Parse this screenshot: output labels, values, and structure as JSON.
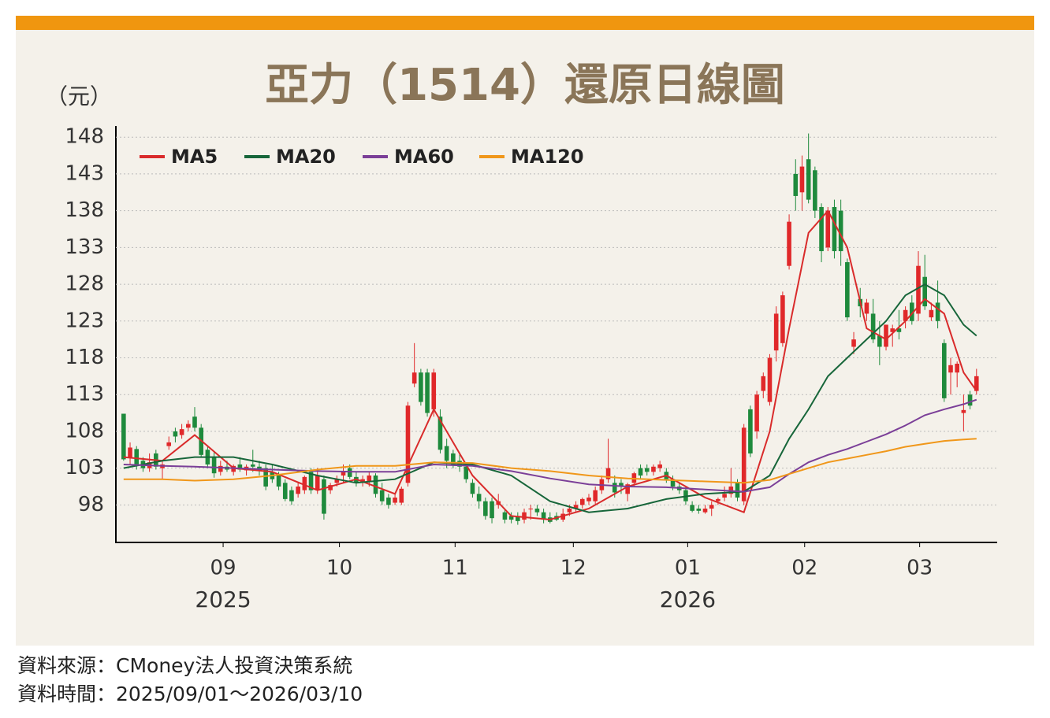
{
  "chart_data": {
    "type": "candlestick",
    "title": "亞力（1514）還原日線圖",
    "y_unit": "（元）",
    "ylim": [
      92.9,
      149.2
    ],
    "yticks": [
      148,
      143,
      138,
      133,
      128,
      123,
      118,
      113,
      108,
      103,
      98
    ],
    "xlim": [
      -1.2,
      135.2
    ],
    "xticks": [
      {
        "value": 15.4,
        "label": "09"
      },
      {
        "value": 33.4,
        "label": "10"
      },
      {
        "value": 51.3,
        "label": "11"
      },
      {
        "value": 69.6,
        "label": "12"
      },
      {
        "value": 87.3,
        "label": "01"
      },
      {
        "value": 105.4,
        "label": "02"
      },
      {
        "value": 123.2,
        "label": "03"
      }
    ],
    "year_labels": [
      {
        "value": 15.4,
        "label": "2025"
      },
      {
        "value": 87.3,
        "label": "2026"
      }
    ],
    "grid": true,
    "up_color": "#e0282a",
    "down_color": "#1e8a3c",
    "open": [
      110.4,
      104.4,
      105.6,
      104,
      103,
      105,
      103,
      106,
      108,
      107.5,
      108.5,
      110,
      108.5,
      105.5,
      104.5,
      102.5,
      103.2,
      102.5,
      103.5,
      102.7,
      103.5,
      103.2,
      103,
      102.5,
      102,
      101,
      100,
      99.5,
      100,
      102.5,
      100,
      101.5,
      100,
      101,
      102,
      103,
      101.8,
      101.2,
      101.2,
      102,
      100,
      99,
      98.3,
      98.3,
      101,
      114.5,
      116,
      116,
      111,
      110,
      106,
      105,
      104,
      103.2,
      101,
      99.5,
      98.5,
      98.5,
      98,
      97,
      96.5,
      96.5,
      96,
      97.5,
      97.5,
      97,
      96.3,
      96.5,
      96,
      97,
      97.5,
      98,
      98.5,
      98.5,
      100,
      101.5,
      101,
      101,
      99.5,
      101,
      103,
      103,
      102.5,
      103,
      102.5,
      101.5,
      100.5,
      100,
      98,
      97.5,
      97,
      97.5,
      98.5,
      99,
      99.5,
      101,
      98.5,
      111,
      108,
      113.5,
      112,
      119,
      120,
      130.5,
      143,
      140.5,
      145,
      143.5,
      138.5,
      133,
      138.5,
      138,
      131,
      119.5,
      126,
      124,
      124,
      121,
      119.5,
      121.5,
      122,
      123,
      125.5,
      124,
      129,
      123.5,
      125.5,
      120,
      116,
      116,
      110.5,
      113,
      113.5
    ],
    "high": [
      110.4,
      106.5,
      106,
      104.5,
      105,
      105.5,
      104,
      107.3,
      108.5,
      109,
      109.5,
      111.3,
      109,
      106,
      105.2,
      104,
      104,
      103.5,
      104.5,
      103.5,
      105.5,
      104,
      103.5,
      103.5,
      102.5,
      101.5,
      100.5,
      101,
      102,
      103,
      103,
      102,
      101,
      102,
      103.5,
      103.5,
      102.5,
      102,
      102.5,
      102.3,
      101,
      99.5,
      99.5,
      100.5,
      112,
      120,
      116.5,
      116.5,
      116.5,
      111,
      107,
      105.5,
      105,
      103.5,
      101.5,
      100.5,
      99,
      99,
      99.5,
      97.5,
      97,
      97,
      97.5,
      98,
      98,
      97.5,
      97,
      97,
      97.5,
      98,
      98.5,
      99,
      99.5,
      100.5,
      102,
      107,
      102,
      101.5,
      101,
      102.5,
      103.5,
      103.5,
      103.5,
      104,
      103,
      102,
      101,
      100.5,
      98.5,
      98,
      98,
      98.5,
      99,
      100.5,
      103,
      101.5,
      109,
      111.5,
      113.5,
      116,
      118.5,
      125,
      127,
      137.5,
      145,
      145.5,
      148.5,
      144,
      139,
      138.5,
      139.5,
      139.5,
      131.5,
      121.5,
      127.5,
      126,
      126,
      123,
      122.5,
      122.5,
      124.5,
      125,
      126.5,
      132.5,
      132,
      125.5,
      128.5,
      120.5,
      118,
      117.5,
      113,
      113.5,
      116.5
    ],
    "low": [
      104,
      103.5,
      102.8,
      102.5,
      102.5,
      102.8,
      101.5,
      105.5,
      106.5,
      107,
      108,
      108,
      104.5,
      103,
      101.7,
      102,
      102.5,
      102,
      102.5,
      102,
      102.5,
      102,
      100,
      101,
      100,
      98.5,
      98,
      99,
      99.5,
      99.5,
      99.5,
      96,
      99.5,
      100.5,
      101,
      101.5,
      100.5,
      100.5,
      100.5,
      99,
      98,
      97.5,
      98,
      98,
      100.5,
      114,
      111.5,
      110,
      110,
      105,
      103,
      103,
      102.5,
      101,
      99,
      97.5,
      96,
      95.5,
      97.5,
      95.5,
      95.5,
      95.3,
      95.5,
      96,
      96.5,
      95.5,
      95.5,
      95.8,
      95.7,
      96.5,
      97,
      97.5,
      98,
      98,
      99.5,
      101,
      99,
      99.5,
      98.5,
      100.5,
      101.5,
      102,
      102,
      102.5,
      101,
      100,
      99.5,
      98,
      97,
      96.8,
      96.8,
      96.5,
      98,
      98.5,
      99,
      98.5,
      98,
      104.5,
      107,
      112.5,
      111.5,
      117.5,
      119.5,
      130,
      138,
      138,
      139,
      137,
      131,
      132.5,
      131.5,
      130.5,
      123,
      118.5,
      123.5,
      123,
      120,
      117,
      119,
      119.5,
      120.5,
      122,
      122.5,
      123,
      124.5,
      123,
      122,
      112,
      113,
      114,
      108,
      111,
      113
    ],
    "close": [
      104.2,
      105.8,
      103.3,
      103,
      103.8,
      103.2,
      103.5,
      106.5,
      107.3,
      108.3,
      109,
      108.5,
      104.8,
      103.5,
      102.3,
      103.3,
      102.8,
      103.3,
      102.8,
      103.2,
      103.2,
      102.6,
      100.5,
      101.5,
      100.5,
      98.8,
      98.5,
      100.5,
      101.8,
      100,
      102,
      96.8,
      100.7,
      101.5,
      102.5,
      101.8,
      101,
      101.5,
      102,
      99.5,
      98.5,
      98,
      99,
      100.2,
      111.5,
      116,
      112,
      110.5,
      116,
      105.5,
      104,
      103.5,
      103.2,
      101.5,
      99.5,
      98.5,
      96.5,
      96.2,
      98.5,
      96,
      96,
      95.8,
      97,
      97.5,
      97,
      96,
      95.7,
      96,
      96.8,
      97.5,
      98,
      98.8,
      99,
      100,
      101.5,
      103,
      99.7,
      100.5,
      100.8,
      102.3,
      102,
      102.5,
      103.2,
      103.5,
      101.5,
      100.5,
      100,
      98.5,
      97.2,
      97.2,
      97.5,
      98,
      98.8,
      99.5,
      100.5,
      99,
      108.5,
      105,
      113,
      115.5,
      118,
      124,
      126.5,
      136.5,
      140,
      144,
      139.5,
      138,
      132.5,
      138,
      132.5,
      132.5,
      123.5,
      120.5,
      125,
      125.5,
      120.5,
      119.5,
      122.5,
      122,
      121.5,
      124.5,
      123,
      130.5,
      125,
      124.5,
      123,
      112.5,
      117,
      117.2,
      110.9,
      111.5,
      115.5
    ],
    "ma_x": [
      0,
      6,
      11,
      17,
      23,
      30,
      36,
      42,
      48,
      54,
      60,
      66,
      72,
      78,
      84,
      90,
      96,
      100,
      103,
      106,
      109,
      112,
      115,
      118,
      121,
      124,
      127,
      130,
      132
    ],
    "series": [
      {
        "name": "MA5",
        "color": "#d92b2b",
        "values": [
          104.5,
          104,
          107.5,
          103,
          102.5,
          100,
          101.5,
          99.5,
          111,
          102,
          96.5,
          96,
          97.5,
          100.5,
          102,
          99,
          97,
          108,
          122,
          135,
          138,
          133,
          122,
          120.5,
          123,
          126,
          124,
          116,
          113.5
        ]
      },
      {
        "name": "MA20",
        "color": "#17663a",
        "values": [
          103,
          104,
          104.5,
          104.5,
          103.5,
          102,
          101,
          101.5,
          103.8,
          103.5,
          102,
          98.5,
          97,
          97.5,
          98.8,
          99.5,
          99.8,
          102,
          107,
          111,
          115.5,
          118,
          120.5,
          123,
          126.5,
          128,
          126.5,
          122.5,
          121
        ]
      },
      {
        "name": "MA60",
        "color": "#7b3f98",
        "values": [
          103.5,
          103.3,
          103.2,
          103,
          102.8,
          102.6,
          102.5,
          102.5,
          103.5,
          103.3,
          102.6,
          101.6,
          100.8,
          100.5,
          100.4,
          100.1,
          99.8,
          100.4,
          102.2,
          103.8,
          104.8,
          105.6,
          106.6,
          107.6,
          108.8,
          110.2,
          111,
          111.7,
          112.3
        ]
      },
      {
        "name": "MA120",
        "color": "#f0971a",
        "values": [
          101.5,
          101.5,
          101.3,
          101.5,
          102,
          102.8,
          103.3,
          103.3,
          103.8,
          103.7,
          103,
          102.6,
          102,
          101.6,
          101.4,
          101.2,
          101,
          101.4,
          102.2,
          103,
          103.8,
          104.3,
          104.8,
          105.3,
          105.9,
          106.3,
          106.7,
          106.9,
          107
        ]
      }
    ]
  },
  "footer": {
    "source": "資料來源：CMoney法人投資決策系統",
    "period": "資料時間：2025/09/01～2026/03/10"
  }
}
